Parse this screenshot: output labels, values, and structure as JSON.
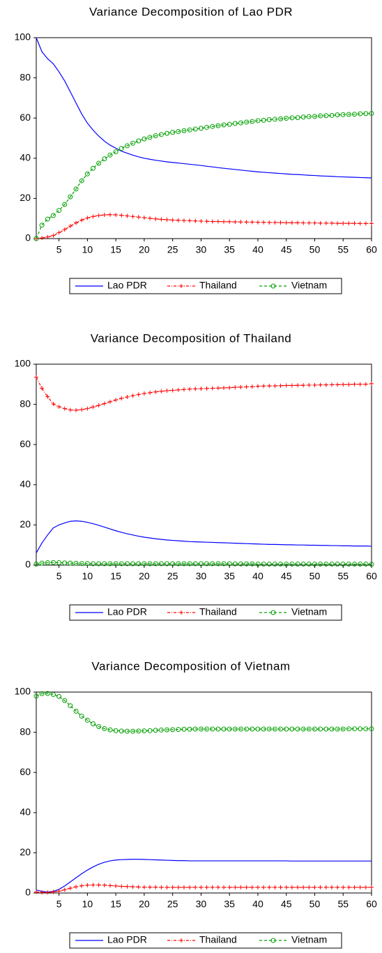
{
  "chart_data": [
    {
      "type": "line",
      "title": "Variance Decomposition of Lao PDR",
      "x": [
        1,
        2,
        3,
        4,
        5,
        6,
        7,
        8,
        9,
        10,
        11,
        12,
        13,
        14,
        15,
        16,
        17,
        18,
        19,
        20,
        21,
        22,
        23,
        24,
        25,
        26,
        27,
        28,
        29,
        30,
        31,
        32,
        33,
        34,
        35,
        36,
        37,
        38,
        39,
        40,
        41,
        42,
        43,
        44,
        45,
        46,
        47,
        48,
        49,
        50,
        51,
        52,
        53,
        54,
        55,
        56,
        57,
        58,
        59,
        60
      ],
      "xlim": [
        1,
        60
      ],
      "xticks": [
        5,
        10,
        15,
        20,
        25,
        30,
        35,
        40,
        45,
        50,
        55,
        60
      ],
      "ylim": [
        0,
        100
      ],
      "yticks": [
        0,
        20,
        40,
        60,
        80,
        100
      ],
      "legend": "bottom",
      "series": [
        {
          "name": "Lao PDR",
          "color": "#0000ff",
          "line": "solid",
          "marker": "none",
          "values": [
            100,
            93,
            89.5,
            87,
            83,
            78.5,
            73,
            67.5,
            62,
            57.5,
            54,
            51,
            48.5,
            46.5,
            45,
            43.5,
            42.5,
            41.5,
            40.7,
            40,
            39.5,
            39,
            38.6,
            38.2,
            37.9,
            37.6,
            37.3,
            37,
            36.7,
            36.4,
            36,
            35.7,
            35.3,
            35,
            34.7,
            34.4,
            34.1,
            33.8,
            33.5,
            33.2,
            33,
            32.8,
            32.6,
            32.4,
            32.2,
            32,
            31.9,
            31.7,
            31.5,
            31.4,
            31.2,
            31.1,
            31,
            30.8,
            30.7,
            30.6,
            30.5,
            30.4,
            30.3,
            30.2
          ]
        },
        {
          "name": "Thailand",
          "color": "#ff0000",
          "line": "dashdot",
          "marker": "plus",
          "values": [
            0,
            0.3,
            0.8,
            1.5,
            3,
            4.5,
            6.2,
            7.8,
            9.2,
            10.3,
            11,
            11.5,
            11.8,
            11.9,
            11.8,
            11.6,
            11.3,
            11,
            10.7,
            10.4,
            10.1,
            9.8,
            9.6,
            9.4,
            9.2,
            9.1,
            9,
            8.9,
            8.8,
            8.7,
            8.6,
            8.5,
            8.5,
            8.4,
            8.4,
            8.3,
            8.3,
            8.2,
            8.2,
            8.1,
            8.1,
            8,
            8,
            8,
            7.9,
            7.9,
            7.9,
            7.8,
            7.8,
            7.8,
            7.7,
            7.7,
            7.7,
            7.6,
            7.6,
            7.6,
            7.6,
            7.5,
            7.5,
            7.5
          ]
        },
        {
          "name": "Vietnam",
          "color": "#00a000",
          "line": "dashed",
          "marker": "circle",
          "values": [
            0,
            6.7,
            9.7,
            11.5,
            14,
            17,
            20.8,
            24.7,
            28.8,
            32.2,
            35,
            37.5,
            39.7,
            41.6,
            43.2,
            44.9,
            46.2,
            47.5,
            48.6,
            49.6,
            50.4,
            51.2,
            51.8,
            52.4,
            52.9,
            53.3,
            53.7,
            54.1,
            54.5,
            54.9,
            55.4,
            55.8,
            56.2,
            56.6,
            56.9,
            57.3,
            57.6,
            58,
            58.3,
            58.7,
            58.9,
            59.2,
            59.4,
            59.6,
            59.9,
            60.1,
            60.2,
            60.5,
            60.7,
            60.8,
            61.1,
            61.2,
            61.3,
            61.6,
            61.7,
            61.8,
            61.9,
            62.1,
            62.2,
            62.3
          ]
        }
      ]
    },
    {
      "type": "line",
      "title": "Variance Decomposition of Thailand",
      "x": [
        1,
        2,
        3,
        4,
        5,
        6,
        7,
        8,
        9,
        10,
        11,
        12,
        13,
        14,
        15,
        16,
        17,
        18,
        19,
        20,
        21,
        22,
        23,
        24,
        25,
        26,
        27,
        28,
        29,
        30,
        31,
        32,
        33,
        34,
        35,
        36,
        37,
        38,
        39,
        40,
        41,
        42,
        43,
        44,
        45,
        46,
        47,
        48,
        49,
        50,
        51,
        52,
        53,
        54,
        55,
        56,
        57,
        58,
        59,
        60
      ],
      "xlim": [
        1,
        60
      ],
      "xticks": [
        5,
        10,
        15,
        20,
        25,
        30,
        35,
        40,
        45,
        50,
        55,
        60
      ],
      "ylim": [
        0,
        100
      ],
      "yticks": [
        0,
        20,
        40,
        60,
        80,
        100
      ],
      "legend": "bottom",
      "series": [
        {
          "name": "Lao PDR",
          "color": "#0000ff",
          "line": "solid",
          "marker": "none",
          "values": [
            6,
            11,
            15,
            18.5,
            20,
            21,
            21.8,
            22,
            21.8,
            21.3,
            20.6,
            19.8,
            18.9,
            18,
            17.1,
            16.3,
            15.6,
            15,
            14.4,
            13.9,
            13.5,
            13.1,
            12.8,
            12.5,
            12.3,
            12.1,
            11.9,
            11.7,
            11.6,
            11.5,
            11.4,
            11.3,
            11.2,
            11.1,
            11,
            10.9,
            10.8,
            10.7,
            10.6,
            10.5,
            10.4,
            10.3,
            10.3,
            10.2,
            10.1,
            10.1,
            10,
            10,
            9.9,
            9.9,
            9.8,
            9.8,
            9.7,
            9.7,
            9.6,
            9.6,
            9.5,
            9.5,
            9.5,
            9.4
          ]
        },
        {
          "name": "Thailand",
          "color": "#ff0000",
          "line": "dashdot",
          "marker": "plus",
          "values": [
            93.5,
            88,
            83.8,
            80.2,
            78.8,
            77.9,
            77.2,
            77.1,
            77.4,
            77.9,
            78.7,
            79.5,
            80.4,
            81.3,
            82.2,
            83,
            83.7,
            84.3,
            84.9,
            85.4,
            85.8,
            86.2,
            86.5,
            86.8,
            87,
            87.2,
            87.4,
            87.6,
            87.7,
            87.8,
            87.9,
            88,
            88.1,
            88.2,
            88.3,
            88.5,
            88.6,
            88.7,
            88.8,
            89,
            89.1,
            89.2,
            89.2,
            89.3,
            89.4,
            89.4,
            89.5,
            89.5,
            89.6,
            89.6,
            89.7,
            89.7,
            89.8,
            89.8,
            89.9,
            89.9,
            90,
            90,
            90,
            90.3
          ]
        },
        {
          "name": "Vietnam",
          "color": "#00a000",
          "line": "dashed",
          "marker": "circle",
          "values": [
            0.5,
            1,
            1.2,
            1.3,
            1.2,
            1.1,
            1,
            0.9,
            0.8,
            0.8,
            0.7,
            0.7,
            0.7,
            0.7,
            0.7,
            0.7,
            0.7,
            0.7,
            0.7,
            0.7,
            0.7,
            0.7,
            0.7,
            0.7,
            0.7,
            0.7,
            0.7,
            0.7,
            0.7,
            0.7,
            0.7,
            0.7,
            0.7,
            0.7,
            0.7,
            0.6,
            0.6,
            0.6,
            0.6,
            0.5,
            0.5,
            0.5,
            0.5,
            0.5,
            0.5,
            0.5,
            0.5,
            0.5,
            0.5,
            0.5,
            0.5,
            0.5,
            0.5,
            0.5,
            0.5,
            0.5,
            0.5,
            0.5,
            0.5,
            0.4
          ]
        }
      ]
    },
    {
      "type": "line",
      "title": "Variance Decomposition of Vietnam",
      "x": [
        1,
        2,
        3,
        4,
        5,
        6,
        7,
        8,
        9,
        10,
        11,
        12,
        13,
        14,
        15,
        16,
        17,
        18,
        19,
        20,
        21,
        22,
        23,
        24,
        25,
        26,
        27,
        28,
        29,
        30,
        31,
        32,
        33,
        34,
        35,
        36,
        37,
        38,
        39,
        40,
        41,
        42,
        43,
        44,
        45,
        46,
        47,
        48,
        49,
        50,
        51,
        52,
        53,
        54,
        55,
        56,
        57,
        58,
        59,
        60
      ],
      "xlim": [
        1,
        60
      ],
      "xticks": [
        5,
        10,
        15,
        20,
        25,
        30,
        35,
        40,
        45,
        50,
        55,
        60
      ],
      "ylim": [
        0,
        100
      ],
      "yticks": [
        0,
        20,
        40,
        60,
        80,
        100
      ],
      "legend": "bottom",
      "series": [
        {
          "name": "Lao PDR",
          "color": "#0000ff",
          "line": "solid",
          "marker": "none",
          "values": [
            1.5,
            0.8,
            0.5,
            0.8,
            1.8,
            3.5,
            5.5,
            7.6,
            9.6,
            11.4,
            13,
            14.3,
            15.3,
            16,
            16.4,
            16.6,
            16.7,
            16.8,
            16.8,
            16.7,
            16.6,
            16.5,
            16.4,
            16.3,
            16.2,
            16.1,
            16.1,
            16,
            16,
            16,
            16,
            16,
            16,
            16,
            16,
            16,
            16,
            16,
            16,
            16,
            16,
            16,
            16,
            16,
            16,
            15.9,
            15.9,
            15.9,
            15.9,
            15.9,
            15.9,
            15.9,
            15.9,
            15.9,
            15.9,
            15.9,
            15.9,
            15.9,
            15.9,
            15.9
          ]
        },
        {
          "name": "Thailand",
          "color": "#ff0000",
          "line": "dashdot",
          "marker": "plus",
          "values": [
            0.5,
            0.3,
            0.3,
            0.5,
            0.9,
            1.6,
            2.4,
            3.1,
            3.6,
            3.9,
            4,
            4,
            3.9,
            3.7,
            3.5,
            3.3,
            3.2,
            3.1,
            3,
            2.9,
            2.9,
            2.9,
            2.8,
            2.8,
            2.8,
            2.8,
            2.8,
            2.8,
            2.8,
            2.8,
            2.8,
            2.8,
            2.8,
            2.8,
            2.8,
            2.8,
            2.8,
            2.8,
            2.8,
            2.8,
            2.8,
            2.8,
            2.8,
            2.8,
            2.8,
            2.8,
            2.8,
            2.8,
            2.8,
            2.8,
            2.8,
            2.8,
            2.8,
            2.8,
            2.8,
            2.8,
            2.8,
            2.8,
            2.8,
            2.8
          ]
        },
        {
          "name": "Vietnam",
          "color": "#00a000",
          "line": "dashed",
          "marker": "circle",
          "values": [
            98,
            99.2,
            99.3,
            98.8,
            97.8,
            95.8,
            93.2,
            90.5,
            88,
            86,
            84.2,
            82.8,
            81.8,
            81.2,
            80.8,
            80.6,
            80.5,
            80.5,
            80.6,
            80.7,
            80.8,
            81,
            81.1,
            81.2,
            81.3,
            81.4,
            81.5,
            81.5,
            81.6,
            81.6,
            81.6,
            81.6,
            81.6,
            81.6,
            81.6,
            81.6,
            81.6,
            81.6,
            81.6,
            81.6,
            81.6,
            81.6,
            81.6,
            81.6,
            81.6,
            81.6,
            81.6,
            81.6,
            81.6,
            81.6,
            81.6,
            81.6,
            81.6,
            81.6,
            81.6,
            81.7,
            81.7,
            81.7,
            81.7,
            81.7
          ]
        }
      ]
    }
  ]
}
